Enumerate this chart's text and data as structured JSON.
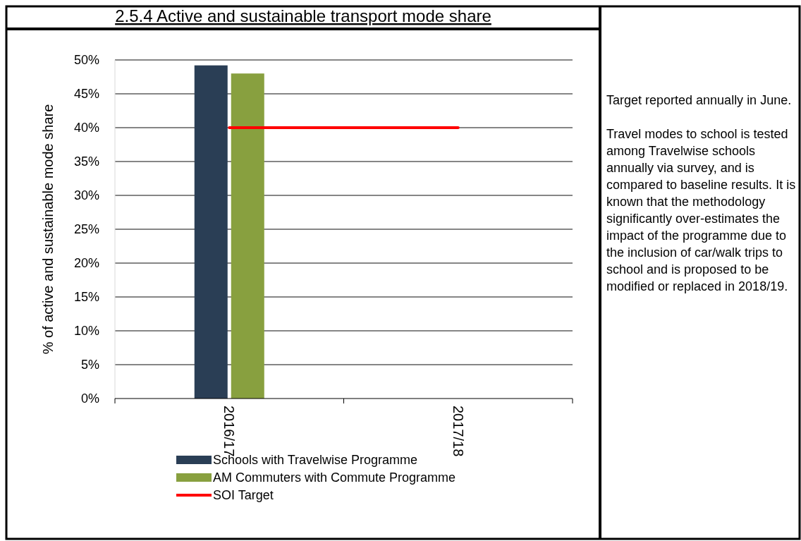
{
  "chart_data": {
    "type": "bar",
    "title": "2.5.4 Active and sustainable transport mode share",
    "ylabel": "% of active and sustainable mode share",
    "categories": [
      "2016/17",
      "2017/18"
    ],
    "series": [
      {
        "name": "Schools with Travelwise Programme",
        "color": "#2a3e55",
        "values": [
          49.2,
          null
        ]
      },
      {
        "name": "AM Commuters with Commute Programme",
        "color": "#88a03f",
        "values": [
          48,
          null
        ]
      },
      {
        "name": "SOI Target",
        "color": "#ff0000",
        "type": "line",
        "values": [
          40,
          40
        ]
      }
    ],
    "ylim": [
      0,
      50
    ],
    "yticks": [
      {
        "value": 0,
        "label": "0%"
      },
      {
        "value": 5,
        "label": "5%"
      },
      {
        "value": 10,
        "label": "10%"
      },
      {
        "value": 15,
        "label": "15%"
      },
      {
        "value": 20,
        "label": "20%"
      },
      {
        "value": 25,
        "label": "25%"
      },
      {
        "value": 30,
        "label": "30%"
      },
      {
        "value": 35,
        "label": "35%"
      },
      {
        "value": 40,
        "label": "40%"
      },
      {
        "value": 45,
        "label": "45%"
      },
      {
        "value": 50,
        "label": "50%"
      }
    ],
    "grid": "y",
    "legend": "bottom",
    "annotations": [
      "Target reported annually in June.",
      "Travel modes to school is tested among Travelwise schools annually via survey, and is compared to baseline results. It is known that the methodology significantly over-estimates the impact of the programme due to the inclusion of car/walk trips to school and is proposed to be modified or replaced in 2018/19."
    ]
  }
}
